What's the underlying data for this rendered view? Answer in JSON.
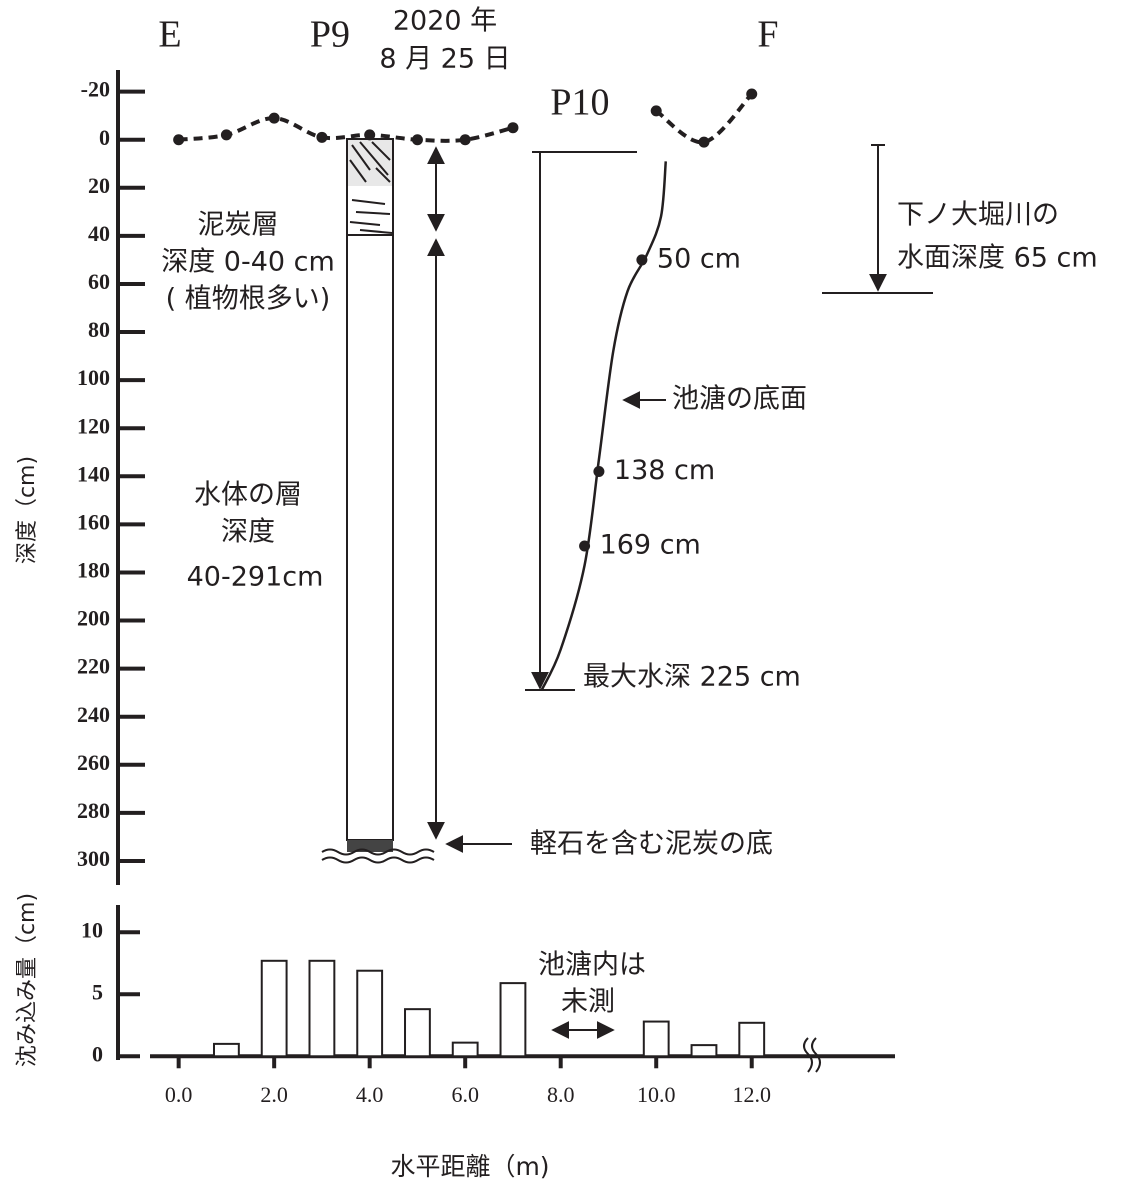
{
  "chart_data": [
    {
      "type": "line",
      "ylabel": "深度（cm)",
      "ylim": [
        -29,
        310
      ],
      "y_reversed": true,
      "yticks": [
        -20,
        0,
        20,
        40,
        60,
        80,
        100,
        120,
        140,
        160,
        180,
        200,
        220,
        240,
        260,
        280,
        300
      ],
      "xlim": [
        -0.6,
        15
      ],
      "annotations": [
        "E",
        "P9",
        "2020 年",
        "8 月 25 日",
        "P10",
        "F",
        "泥炭層",
        "深度 0-40 cm",
        "( 植物根多い)",
        "水体の層",
        "深度",
        "40-291cm",
        "池溏の底面",
        "下ノ大堀川の",
        "水面深度 65 cm",
        "最大水深 225 cm",
        "軽石を含む泥炭の底"
      ],
      "series": [
        {
          "color": "#231f20",
          "line_style": "dashed",
          "markers": true,
          "x": [
            0,
            1,
            2,
            3,
            4,
            5,
            6,
            7,
            8.5,
            10,
            11,
            12
          ],
          "values": [
            0,
            -2,
            -9,
            -1,
            -2,
            0,
            0,
            -5,
            null,
            -12,
            1,
            -19
          ]
        },
        {
          "color": "#231f20",
          "line_style": "solid",
          "markers": false,
          "x": [
            10.2,
            10.1,
            9.8,
            9.4,
            9.1,
            8.8,
            8.5,
            8.0,
            7.6
          ],
          "values": [
            9,
            32,
            48,
            63,
            88,
            133,
            177,
            212,
            229
          ]
        },
        {
          "color": "#231f20",
          "line_style": "none",
          "markers": true,
          "x": [
            9.7,
            8.8,
            8.5
          ],
          "values": [
            50,
            138,
            169
          ],
          "value_labels": [
            "50 cm",
            "138 cm",
            "169 cm"
          ]
        }
      ]
    },
    {
      "type": "bar",
      "ylabel": "沈み込み量（cm)",
      "xlabel": "水平距離（m)",
      "ylim": [
        -0.3,
        12.2
      ],
      "yticks": [
        0,
        5,
        10
      ],
      "xlim": [
        -0.6,
        15
      ],
      "xticks": [
        {
          "value": 0,
          "label": "0.0"
        },
        {
          "value": 2,
          "label": "2.0"
        },
        {
          "value": 4,
          "label": "4.0"
        },
        {
          "value": 6,
          "label": "6.0"
        },
        {
          "value": 8,
          "label": "8.0"
        },
        {
          "value": 10,
          "label": "10.0"
        },
        {
          "value": 12,
          "label": "12.0"
        }
      ],
      "color": "#ffffff",
      "annotations": [
        "池溏内は",
        "未測"
      ],
      "x": [
        1,
        2,
        3,
        4,
        5,
        6,
        7,
        10,
        11,
        12
      ],
      "values": [
        1.0,
        7.7,
        7.7,
        6.9,
        3.8,
        1.1,
        5.9,
        2.8,
        0.9,
        2.7
      ]
    }
  ]
}
